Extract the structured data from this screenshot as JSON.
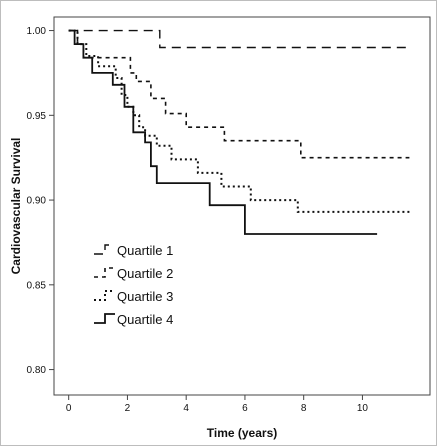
{
  "chart_data": {
    "type": "line",
    "step": true,
    "xlabel": "Time (years)",
    "ylabel": "Cardiovascular Survival",
    "xlim": [
      -0.5,
      12.3
    ],
    "ylim": [
      0.785,
      1.008
    ],
    "xticks": [
      0,
      2,
      4,
      6,
      8,
      10
    ],
    "xtick_labels": [
      "0",
      "2",
      "4",
      "6",
      "8",
      "10"
    ],
    "yticks": [
      0.8,
      0.85,
      0.9,
      0.95,
      1.0
    ],
    "ytick_labels": [
      "0.80",
      "0.85",
      "0.90",
      "0.95",
      "1.00"
    ],
    "grid": false,
    "legend_position": "lower-left",
    "series": [
      {
        "name": "Quartile 1",
        "dash": "dashed",
        "x": [
          0,
          3.1,
          11.6
        ],
        "y": [
          1.0,
          0.99,
          0.99
        ]
      },
      {
        "name": "Quartile 2",
        "dash": "short-dashed",
        "x": [
          0,
          0.3,
          0.5,
          1.8,
          2.1,
          2.3,
          2.8,
          3.3,
          4.0,
          5.3,
          7.9,
          11.6
        ],
        "y": [
          1.0,
          0.992,
          0.984,
          0.984,
          0.975,
          0.97,
          0.96,
          0.951,
          0.943,
          0.935,
          0.925,
          0.925
        ]
      },
      {
        "name": "Quartile 3",
        "dash": "dotted",
        "x": [
          0,
          0.3,
          0.6,
          1.0,
          1.6,
          1.8,
          2.0,
          2.2,
          2.4,
          2.6,
          3.0,
          3.5,
          4.4,
          5.2,
          6.2,
          7.8,
          11.6
        ],
        "y": [
          1.0,
          0.992,
          0.985,
          0.979,
          0.972,
          0.962,
          0.955,
          0.95,
          0.943,
          0.938,
          0.932,
          0.924,
          0.916,
          0.908,
          0.9,
          0.893,
          0.893
        ]
      },
      {
        "name": "Quartile 4",
        "dash": "solid",
        "x": [
          0,
          0.2,
          0.5,
          0.8,
          1.5,
          1.9,
          2.2,
          2.6,
          2.8,
          3.0,
          4.8,
          6.0,
          10.5
        ],
        "y": [
          1.0,
          0.992,
          0.984,
          0.975,
          0.968,
          0.955,
          0.94,
          0.934,
          0.92,
          0.91,
          0.897,
          0.88,
          0.88
        ]
      }
    ]
  }
}
